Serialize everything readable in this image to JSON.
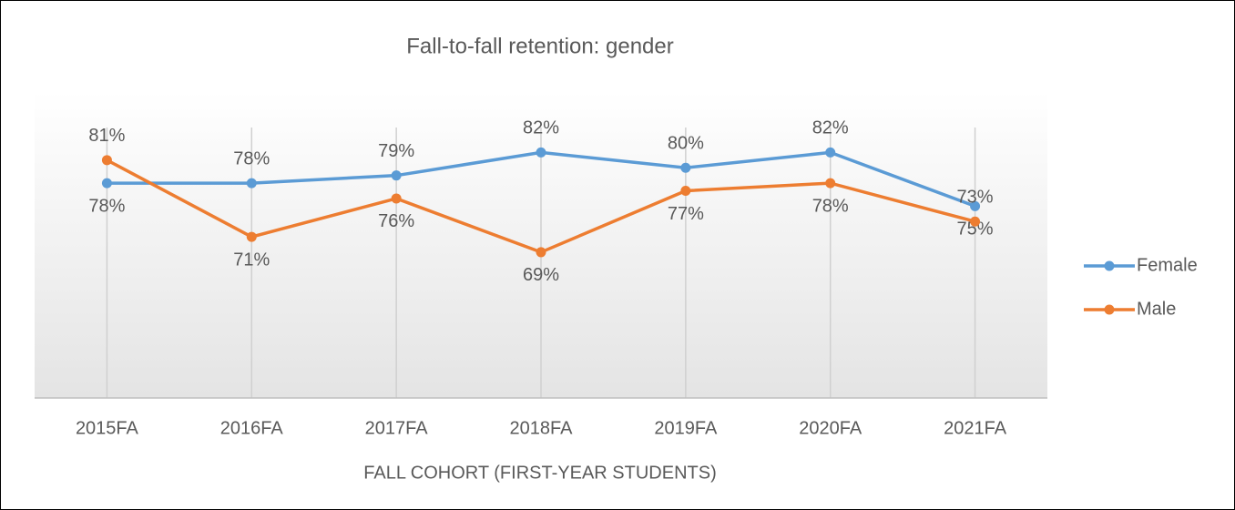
{
  "chart_data": {
    "type": "line",
    "title": "Fall-to-fall retention: gender",
    "x_label": "FALL COHORT (FIRST-YEAR STUDENTS)",
    "categories": [
      "2015FA",
      "2016FA",
      "2017FA",
      "2018FA",
      "2019FA",
      "2020FA",
      "2021FA"
    ],
    "series": [
      {
        "name": "Female",
        "color": "#5b9bd5",
        "values": [
          78,
          78,
          79,
          82,
          80,
          82,
          75
        ],
        "value_labels": [
          "78%",
          "78%",
          "79%",
          "82%",
          "80%",
          "82%",
          "75%"
        ]
      },
      {
        "name": "Male",
        "color": "#ed7d31",
        "values": [
          81,
          71,
          76,
          69,
          77,
          78,
          73
        ],
        "value_labels": [
          "81%",
          "71%",
          "76%",
          "69%",
          "77%",
          "78%",
          "73%"
        ]
      }
    ],
    "ylim": [
      50,
      90
    ],
    "legend": "right"
  }
}
